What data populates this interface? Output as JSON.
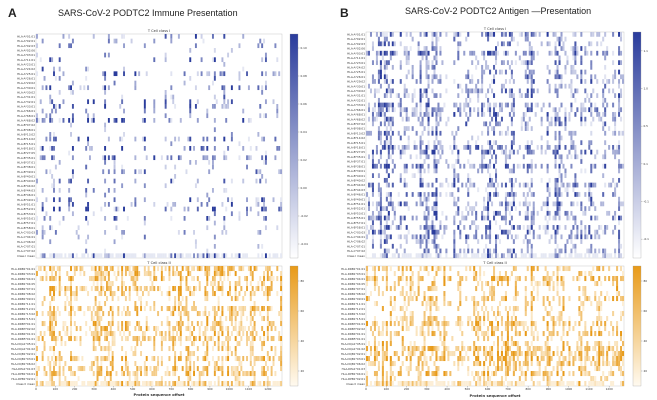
{
  "panels": [
    {
      "letter": "A",
      "title": "SARS-CoV-2  PODTC2 Immune Presentation",
      "heatmaps": [
        {
          "subtitle": "T Cell class I",
          "rows": [
            "HLA-A*01:01",
            "HLA-A*02:01",
            "HLA-A*02:03",
            "HLA-A*02:06",
            "HLA-A*03:01",
            "HLA-A*11:01",
            "HLA-A*23:01",
            "HLA-A*24:02",
            "HLA-A*25:01",
            "HLA-A*26:01",
            "HLA-A*29:02",
            "HLA-A*30:01",
            "HLA-A*30:02",
            "HLA-A*31:01",
            "HLA-A*32:01",
            "HLA-A*33:01",
            "HLA-A*66:01",
            "HLA-A*68:01",
            "HLA-A*68:02",
            "HLA-B*07:02",
            "HLA-B*08:01",
            "HLA-B*13:02",
            "HLA-B*14:02",
            "HLA-B*15:01",
            "HLA-B*18:01",
            "HLA-B*27:05",
            "HLA-B*35:01",
            "HLA-B*37:01",
            "HLA-B*38:01",
            "HLA-B*39:01",
            "HLA-B*40:01",
            "HLA-B*40:02",
            "HLA-B*44:02",
            "HLA-B*44:03",
            "HLA-B*46:01",
            "HLA-B*49:01",
            "HLA-B*51:01",
            "HLA-B*52:01",
            "HLA-B*53:01",
            "HLA-B*55:01",
            "HLA-B*57:01",
            "HLA-B*58:01",
            "HLA-C*03:03",
            "HLA-C*04:01",
            "HLA-C*06:02",
            "HLA-C*07:01",
            "HLA-C*07:02",
            "Class I mean"
          ],
          "colorbar_ticks": [
            "0.10",
            "0.08",
            "0.06",
            "0.04",
            "0.02",
            "0.00",
            "-0.02",
            "-0.04"
          ],
          "color_low": "#ffffff",
          "color_high": "#2a3c9c"
        },
        {
          "subtitle": "T Cell class II",
          "rows": [
            "HLA-DRB1*01:01",
            "HLA-DRB1*03:01",
            "HLA-DRB1*04:01",
            "HLA-DRB1*04:05",
            "HLA-DRB1*07:01",
            "HLA-DRB1*08:02",
            "HLA-DRB1*09:01",
            "HLA-DRB1*11:01",
            "HLA-DRB1*12:01",
            "HLA-DRB1*13:02",
            "HLA-DRB1*15:01",
            "HLA-DRB3*01:01",
            "HLA-DRB3*02:02",
            "HLA-DRB4*01:01",
            "HLA-DRB5*01:01",
            "HLA-DQA1*05:01",
            "HLA-DQA1*01:02",
            "HLA-DQB1*02:01",
            "HLA-DQB1*03:01",
            "HLA-DQB1*06:02",
            "HLA-DPA1*01:03",
            "HLA-DPB1*04:01",
            "HLA-DPB1*02:01",
            "Class II mean"
          ],
          "colorbar_ticks": [
            "80",
            "60",
            "40",
            "20"
          ],
          "color_low": "#fffaf0",
          "color_high": "#e89a18"
        }
      ],
      "xticks": [
        "0",
        "100",
        "200",
        "300",
        "400",
        "500",
        "600",
        "700",
        "800",
        "900",
        "1000",
        "1100",
        "1200"
      ],
      "xlabel": "Protein sequence offset"
    },
    {
      "letter": "B",
      "title": "SARS-CoV-2  PODTC2 Antigen —Presentation",
      "heatmaps": [
        {
          "subtitle": "T Cell class I",
          "rows": [
            "HLA-A*01:01",
            "HLA-A*02:01",
            "HLA-A*02:03",
            "HLA-A*02:06",
            "HLA-A*03:01",
            "HLA-A*11:01",
            "HLA-A*23:01",
            "HLA-A*24:02",
            "HLA-A*25:01",
            "HLA-A*26:01",
            "HLA-A*29:02",
            "HLA-A*30:01",
            "HLA-A*30:02",
            "HLA-A*31:01",
            "HLA-A*32:01",
            "HLA-A*33:01",
            "HLA-A*66:01",
            "HLA-A*68:01",
            "HLA-A*68:02",
            "HLA-B*07:02",
            "HLA-B*08:01",
            "HLA-B*13:02",
            "HLA-B*14:02",
            "HLA-B*15:01",
            "HLA-B*18:01",
            "HLA-B*27:05",
            "HLA-B*35:01",
            "HLA-B*37:01",
            "HLA-B*38:01",
            "HLA-B*39:01",
            "HLA-B*40:01",
            "HLA-B*40:02",
            "HLA-B*44:02",
            "HLA-B*44:03",
            "HLA-B*46:01",
            "HLA-B*49:01",
            "HLA-B*51:01",
            "HLA-B*52:01",
            "HLA-B*53:01",
            "HLA-B*55:01",
            "HLA-B*57:01",
            "HLA-B*58:01",
            "HLA-C*03:03",
            "HLA-C*04:01",
            "HLA-C*06:02",
            "HLA-C*07:01",
            "HLA-C*07:02",
            "Class I mean"
          ],
          "colorbar_ticks": [
            "1.1",
            "1.0",
            "0.5",
            "0.1",
            "-0.1",
            "-0.1"
          ],
          "color_low": "#ffffff",
          "color_high": "#2a3c9c"
        },
        {
          "subtitle": "T Cell class II",
          "rows": [
            "HLA-DRB1*01:01",
            "HLA-DRB1*03:01",
            "HLA-DRB1*04:01",
            "HLA-DRB1*04:05",
            "HLA-DRB1*07:01",
            "HLA-DRB1*08:02",
            "HLA-DRB1*09:01",
            "HLA-DRB1*11:01",
            "HLA-DRB1*12:01",
            "HLA-DRB1*13:02",
            "HLA-DRB1*15:01",
            "HLA-DRB3*01:01",
            "HLA-DRB3*02:02",
            "HLA-DRB4*01:01",
            "HLA-DRB5*01:01",
            "HLA-DQA1*05:01",
            "HLA-DQA1*01:02",
            "HLA-DQB1*02:01",
            "HLA-DQB1*03:01",
            "HLA-DQB1*06:02",
            "HLA-DPA1*01:03",
            "HLA-DPB1*04:01",
            "HLA-DPB1*02:01",
            "Class II mean"
          ],
          "colorbar_ticks": [
            "80",
            "60",
            "40",
            "20"
          ],
          "color_low": "#fffaf0",
          "color_high": "#e89a18"
        }
      ],
      "xticks": [
        "0",
        "100",
        "200",
        "300",
        "400",
        "500",
        "600",
        "700",
        "800",
        "900",
        "1000",
        "1100",
        "1200"
      ],
      "xlabel": "Protein sequence offset"
    }
  ],
  "chart_data": [
    {
      "type": "heatmap",
      "title": "SARS-CoV-2  PODTC2 Immune Presentation",
      "subtitle_top": "T Cell class I",
      "subtitle_bottom": "T Cell class II",
      "xlabel": "Protein sequence offset",
      "xlim": [
        0,
        1273
      ],
      "rows_top": 48,
      "rows_bottom": 24,
      "note": ""
    },
    {
      "type": "heatmap",
      "title": "SARS-CoV-2  PODTC2 Antigen —Presentation",
      "subtitle_top": "T Cell class I",
      "subtitle_bottom": "T Cell class II",
      "xlabel": "Protein sequence offset",
      "xlim": [
        0,
        1273
      ],
      "rows_top": 48,
      "rows_bottom": 24
    }
  ]
}
